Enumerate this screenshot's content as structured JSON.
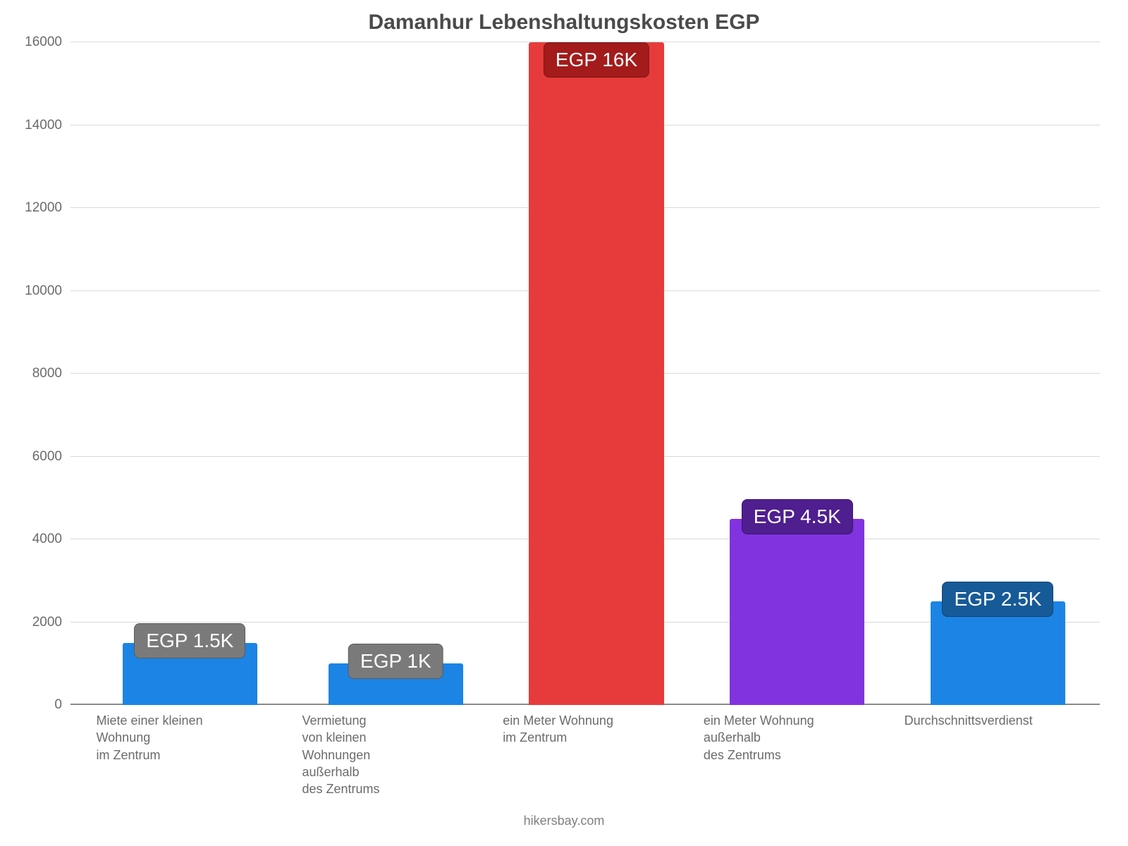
{
  "chart": {
    "type": "bar",
    "title": "Damanhur Lebenshaltungskosten EGP",
    "title_fontsize": 30,
    "title_color": "#4a4a4a",
    "footer": "hikersbay.com",
    "footer_fontsize": 18,
    "footer_color": "#808080",
    "background_color": "#ffffff",
    "ymax": 16000,
    "ytick_step": 2000,
    "ytick_fontsize": 19,
    "ytick_color": "#6b6b6b",
    "gridline_color": "#d9d9d9",
    "baseline_color": "#8a8a8a",
    "xlabel_fontsize": 18,
    "xlabel_color": "#6b6b6b",
    "badge_fontsize": 28,
    "bar_width_pct": 72,
    "slot_width_pct": 18.2,
    "bars": [
      {
        "key": "rent_small_center",
        "value": 1500,
        "value_label": "EGP 1.5K",
        "bar_color": "#1c84e4",
        "badge_bg": "#7a7a7a",
        "label_lines": [
          "Miete einer kleinen",
          "Wohnung",
          "im Zentrum"
        ],
        "slot_left_pct": 2.5
      },
      {
        "key": "rent_small_outside",
        "value": 1000,
        "value_label": "EGP 1K",
        "bar_color": "#1c84e4",
        "badge_bg": "#7a7a7a",
        "label_lines": [
          "Vermietung",
          "von kleinen",
          "Wohnungen",
          "außerhalb",
          "des Zentrums"
        ],
        "slot_left_pct": 22.5
      },
      {
        "key": "sqm_center",
        "value": 16000,
        "value_label": "EGP 16K",
        "bar_color": "#e73b3b",
        "badge_bg": "#a31b1b",
        "label_lines": [
          "ein Meter Wohnung",
          "im Zentrum"
        ],
        "slot_left_pct": 42.0
      },
      {
        "key": "sqm_outside",
        "value": 4500,
        "value_label": "EGP 4.5K",
        "bar_color": "#8133df",
        "badge_bg": "#4f1e8f",
        "label_lines": [
          "ein Meter Wohnung",
          "außerhalb",
          "des Zentrums"
        ],
        "slot_left_pct": 61.5
      },
      {
        "key": "avg_income",
        "value": 2500,
        "value_label": "EGP 2.5K",
        "bar_color": "#1c84e4",
        "badge_bg": "#165a97",
        "label_lines": [
          "Durchschnittsverdienst"
        ],
        "slot_left_pct": 81.0
      }
    ]
  }
}
